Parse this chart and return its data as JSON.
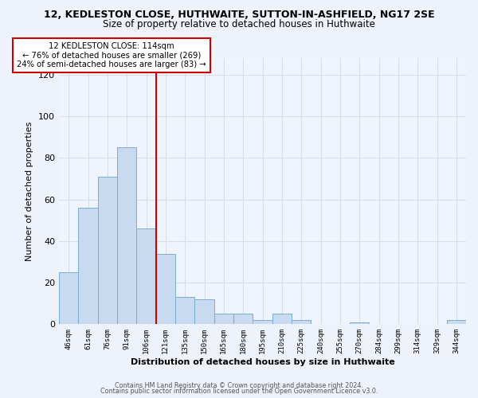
{
  "title1": "12, KEDLESTON CLOSE, HUTHWAITE, SUTTON-IN-ASHFIELD, NG17 2SE",
  "title2": "Size of property relative to detached houses in Huthwaite",
  "xlabel": "Distribution of detached houses by size in Huthwaite",
  "ylabel": "Number of detached properties",
  "bins": [
    "46sqm",
    "61sqm",
    "76sqm",
    "91sqm",
    "106sqm",
    "121sqm",
    "135sqm",
    "150sqm",
    "165sqm",
    "180sqm",
    "195sqm",
    "210sqm",
    "225sqm",
    "240sqm",
    "255sqm",
    "270sqm",
    "284sqm",
    "299sqm",
    "314sqm",
    "329sqm",
    "344sqm"
  ],
  "values": [
    25,
    56,
    71,
    85,
    46,
    34,
    13,
    12,
    5,
    5,
    2,
    5,
    2,
    0,
    0,
    1,
    0,
    0,
    0,
    0,
    2
  ],
  "bar_color": "#c8daf0",
  "bar_edge_color": "#7aadd4",
  "vline_x_index": 4.5,
  "vline_color": "#cc0000",
  "annotation_line1": "12 KEDLESTON CLOSE: 114sqm",
  "annotation_line2": "← 76% of detached houses are smaller (269)",
  "annotation_line3": "24% of semi-detached houses are larger (83) →",
  "annotation_box_color": "white",
  "annotation_box_edge": "#cc0000",
  "ylim": [
    0,
    128
  ],
  "yticks": [
    0,
    20,
    40,
    60,
    80,
    100,
    120
  ],
  "footer1": "Contains HM Land Registry data © Crown copyright and database right 2024.",
  "footer2": "Contains public sector information licensed under the Open Government Licence v3.0.",
  "bg_color": "#eef2fa",
  "plot_bg_color": "#f0f4ff",
  "grid_color": "#d8dde8"
}
